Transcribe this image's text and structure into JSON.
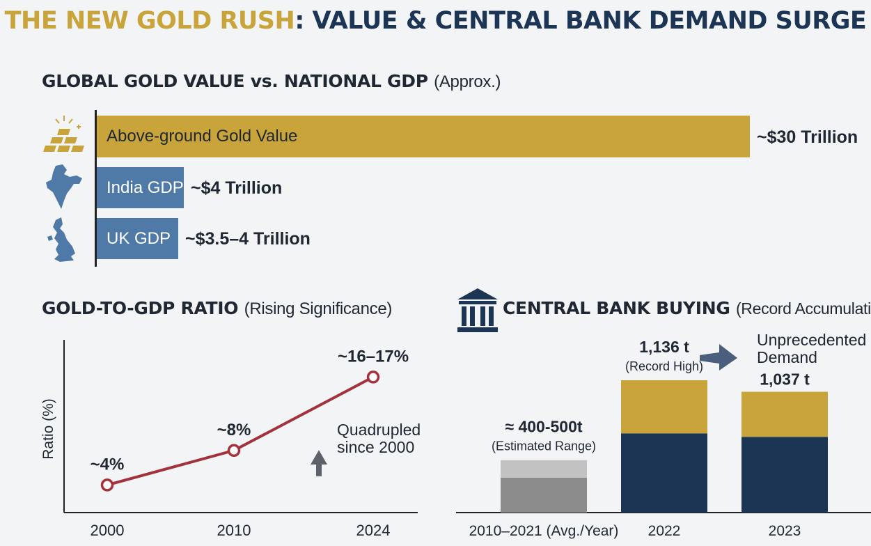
{
  "header": {
    "title_gold": "THE NEW GOLD RUSH",
    "title_rest": ": VALUE & CENTRAL BANK DEMAND SURGE"
  },
  "colors": {
    "gold": "#c9a43a",
    "navy": "#1c3555",
    "steel": "#4f7aa8",
    "gray_dark": "#8c8c8c",
    "gray_light": "#c2c2c2",
    "line": "#a3323d"
  },
  "gdp_section": {
    "title": "GLOBAL GOLD VALUE vs. NATIONAL GDP",
    "subtitle": "(Approx.)",
    "icons": [
      "gold-bars-icon",
      "india-map-icon",
      "uk-map-icon"
    ]
  },
  "chart_data": [
    {
      "type": "bar",
      "orientation": "horizontal",
      "title": "GLOBAL GOLD VALUE vs. NATIONAL GDP (Approx.)",
      "unit": "Trillion USD",
      "categories": [
        "Above-ground Gold Value",
        "India GDP",
        "UK GDP"
      ],
      "values": [
        30,
        4,
        3.75
      ],
      "value_labels": [
        "~$30 Trillion",
        "~$4 Trillion",
        "~$3.5–4 Trillion"
      ],
      "xlim": [
        0,
        32
      ]
    },
    {
      "type": "line",
      "title": "GOLD-TO-GDP RATIO",
      "subtitle": "(Rising Significance)",
      "x": [
        2000,
        2010,
        2024
      ],
      "x_labels": [
        "2000",
        "2010",
        "2024"
      ],
      "y": [
        4,
        8,
        16.5
      ],
      "point_labels": [
        "~4%",
        "~8%",
        "~16–17%"
      ],
      "ylabel": "Ratio (%)",
      "ylim": [
        0,
        20
      ],
      "annotation_line1": "Quadrupled",
      "annotation_line2": "since 2000"
    },
    {
      "type": "bar",
      "stacked": true,
      "title": "CENTRAL BANK BUYING",
      "subtitle": "(Record Accumulation)",
      "unit": "tonnes",
      "categories": [
        "2010–2021 (Avg./Year)",
        "2022",
        "2023"
      ],
      "series": [
        {
          "name": "lower",
          "values": [
            300,
            680,
            650
          ]
        },
        {
          "name": "upper",
          "values": [
            150,
            456,
            387
          ]
        }
      ],
      "totals": [
        450,
        1136,
        1037
      ],
      "value_labels": [
        "≈ 400-500t",
        "1,136 t",
        "1,037 t"
      ],
      "sub_labels": [
        "(Estimated Range)",
        "(Record High)",
        ""
      ],
      "annotation_line1": "Unprecedented",
      "annotation_line2": "Demand",
      "ylim": [
        0,
        1200
      ]
    }
  ]
}
